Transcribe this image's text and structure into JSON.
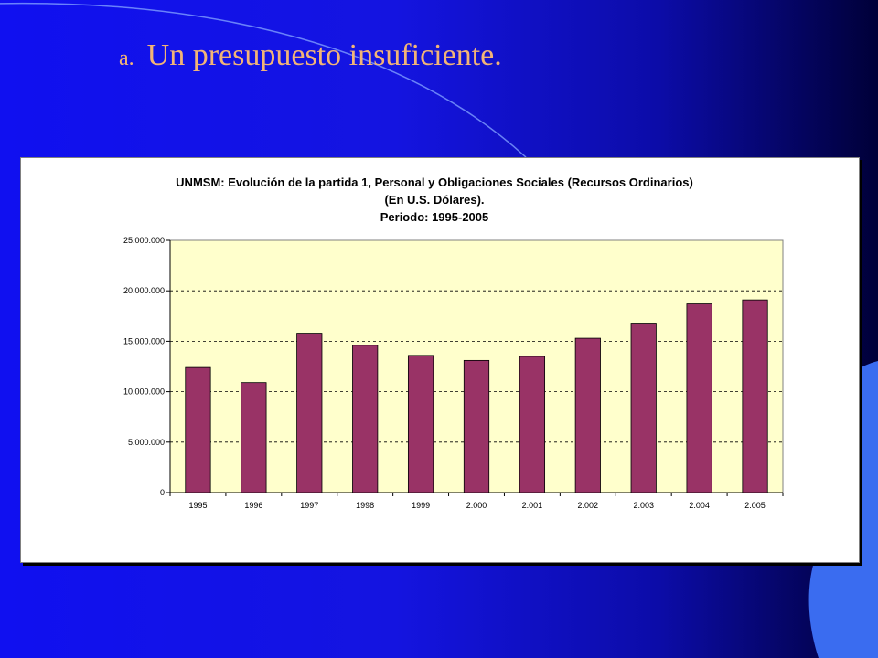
{
  "slide": {
    "marker": "a.",
    "heading": "Un presupuesto insuficiente."
  },
  "colors": {
    "background": "#1414e0",
    "heading": "#f2b477",
    "plot_area": "#ffffcc",
    "bar": "#993366"
  },
  "chart_data": {
    "type": "bar",
    "title_lines": [
      "UNMSM: Evolución de la partida 1, Personal y Obligaciones Sociales (Recursos Ordinarios)",
      "(En U.S. Dólares).",
      "Periodo: 1995-2005"
    ],
    "categories": [
      "1995",
      "1996",
      "1997",
      "1998",
      "1999",
      "2.000",
      "2.001",
      "2.002",
      "2.003",
      "2.004",
      "2.005"
    ],
    "values": [
      12400000,
      10900000,
      15800000,
      14600000,
      13600000,
      13100000,
      13500000,
      15300000,
      16800000,
      18700000,
      19100000
    ],
    "ylim": [
      0,
      25000000
    ],
    "yticks": [
      0,
      5000000,
      10000000,
      15000000,
      20000000,
      25000000
    ],
    "ytick_labels": [
      "0",
      "5.000.000",
      "10.000.000",
      "15.000.000",
      "20.000.000",
      "25.000.000"
    ],
    "grid": true,
    "legend": "none"
  }
}
